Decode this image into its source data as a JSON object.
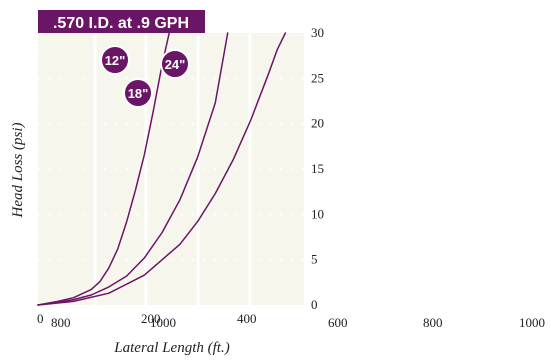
{
  "chart_data": {
    "type": "line",
    "title": ".570 I.D. at .9 GPH",
    "xlabel": "Lateral Length (ft.)",
    "ylabel": "Head Loss (psi)",
    "ylim": [
      0,
      30
    ],
    "y_ticks": [
      "0",
      "5",
      "10",
      "15",
      "20",
      "25",
      "30"
    ],
    "x_ticks_inner": [
      "0",
      "200",
      "400"
    ],
    "x_ticks_outer": [
      "800",
      "1000",
      "600",
      "800",
      "1000"
    ],
    "grid": true,
    "colors": {
      "title_bg": "#6b1566",
      "line": "#6b1566",
      "plot_bg": "#f6f6ec",
      "grid": "#ffffff",
      "text": "#222222"
    },
    "series": [
      {
        "name": "12\"",
        "x": [
          0,
          20,
          40,
          60,
          70,
          80,
          90,
          100,
          110,
          120,
          130,
          140,
          148
        ],
        "y": [
          0,
          0.35,
          0.8,
          1.7,
          2.6,
          4.1,
          6.2,
          9.2,
          12.7,
          16.6,
          21.4,
          26.5,
          30
        ]
      },
      {
        "name": "18\"",
        "x": [
          0,
          20,
          40,
          60,
          80,
          100,
          120,
          140,
          160,
          180,
          200,
          214
        ],
        "y": [
          0,
          0.25,
          0.6,
          1.1,
          2.0,
          3.2,
          5.2,
          8.0,
          11.6,
          16.3,
          22.3,
          30
        ]
      },
      {
        "name": "24\"",
        "x": [
          0,
          40,
          80,
          120,
          160,
          180,
          200,
          220,
          240,
          260,
          270,
          279
        ],
        "y": [
          0,
          0.4,
          1.3,
          3.3,
          6.7,
          9.2,
          12.3,
          16.0,
          20.4,
          25.5,
          28.2,
          30
        ]
      }
    ]
  }
}
